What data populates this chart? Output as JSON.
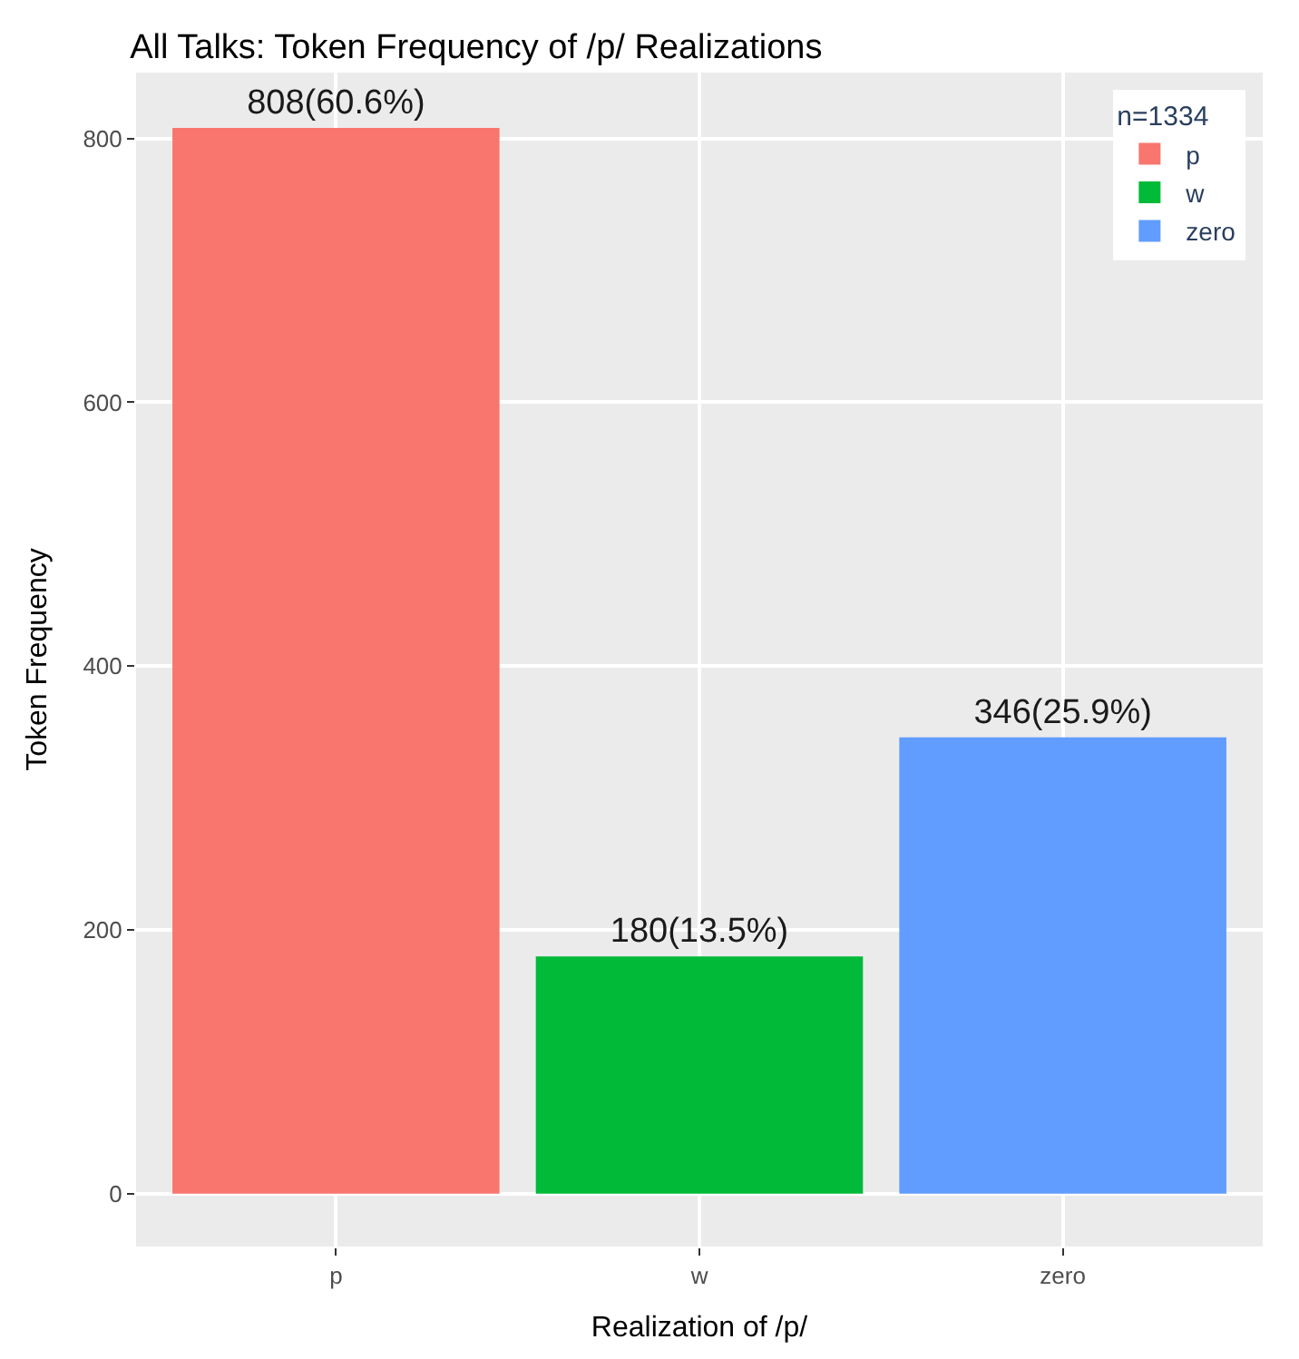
{
  "chart_data": {
    "type": "bar",
    "title": "All Talks: Token Frequency of /p/ Realizations",
    "xlabel": "Realization of /p/",
    "ylabel": "Token Frequency",
    "legend_title": "n=1334",
    "categories": [
      "p",
      "w",
      "zero"
    ],
    "series": [
      {
        "name": "p",
        "color": "#f8766d",
        "values": [
          808,
          null,
          null
        ],
        "value_labels": [
          "808(60.6%)",
          null,
          null
        ]
      },
      {
        "name": "w",
        "color": "#00ba38",
        "values": [
          null,
          180,
          null
        ],
        "value_labels": [
          null,
          "180(13.5%)",
          null
        ]
      },
      {
        "name": "zero",
        "color": "#619cff",
        "values": [
          null,
          null,
          346
        ],
        "value_labels": [
          null,
          null,
          "346(25.9%)"
        ]
      }
    ],
    "ylim": [
      -40,
      850
    ],
    "yticks": [
      0,
      200,
      400,
      600,
      800
    ],
    "grid": true,
    "legend": "top right"
  }
}
